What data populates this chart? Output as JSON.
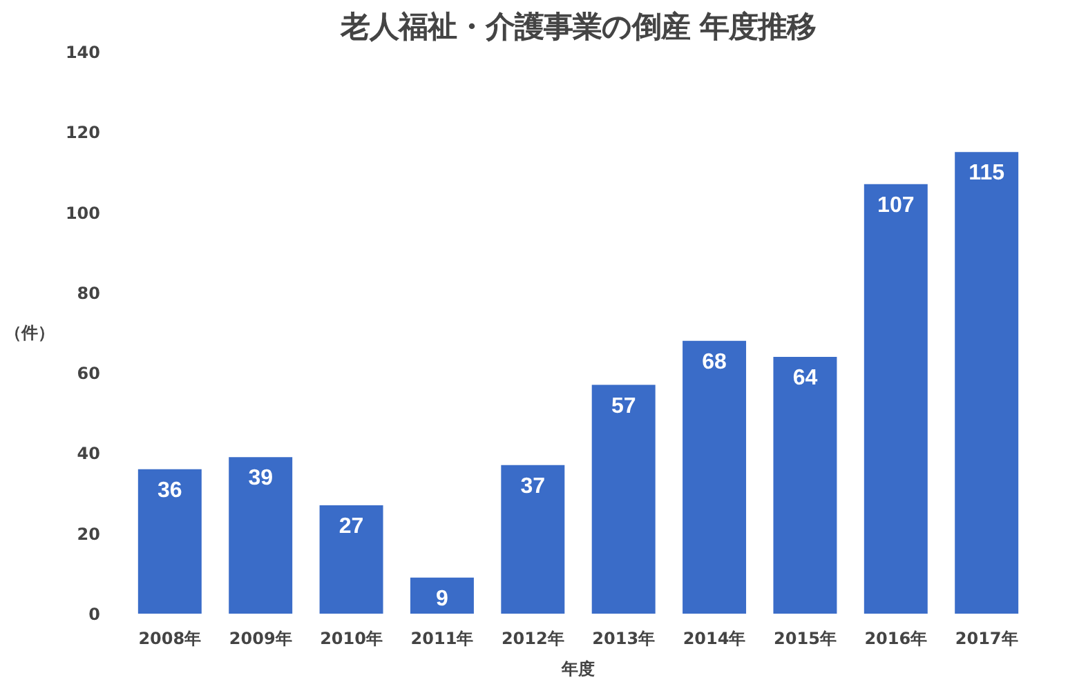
{
  "chart_data": {
    "type": "bar",
    "title": "老人福祉・介護事業の倒産 年度推移",
    "xlabel": "年度",
    "ylabel": "（件）",
    "categories": [
      "2008年",
      "2009年",
      "2010年",
      "2011年",
      "2012年",
      "2013年",
      "2014年",
      "2015年",
      "2016年",
      "2017年"
    ],
    "values": [
      36,
      39,
      27,
      9,
      37,
      57,
      68,
      64,
      107,
      115
    ],
    "color": "#3a6cc8",
    "ylim": [
      0,
      140
    ],
    "yticks": [
      0,
      20,
      40,
      60,
      80,
      100,
      120,
      140
    ],
    "grid": false,
    "data_labels": true
  }
}
